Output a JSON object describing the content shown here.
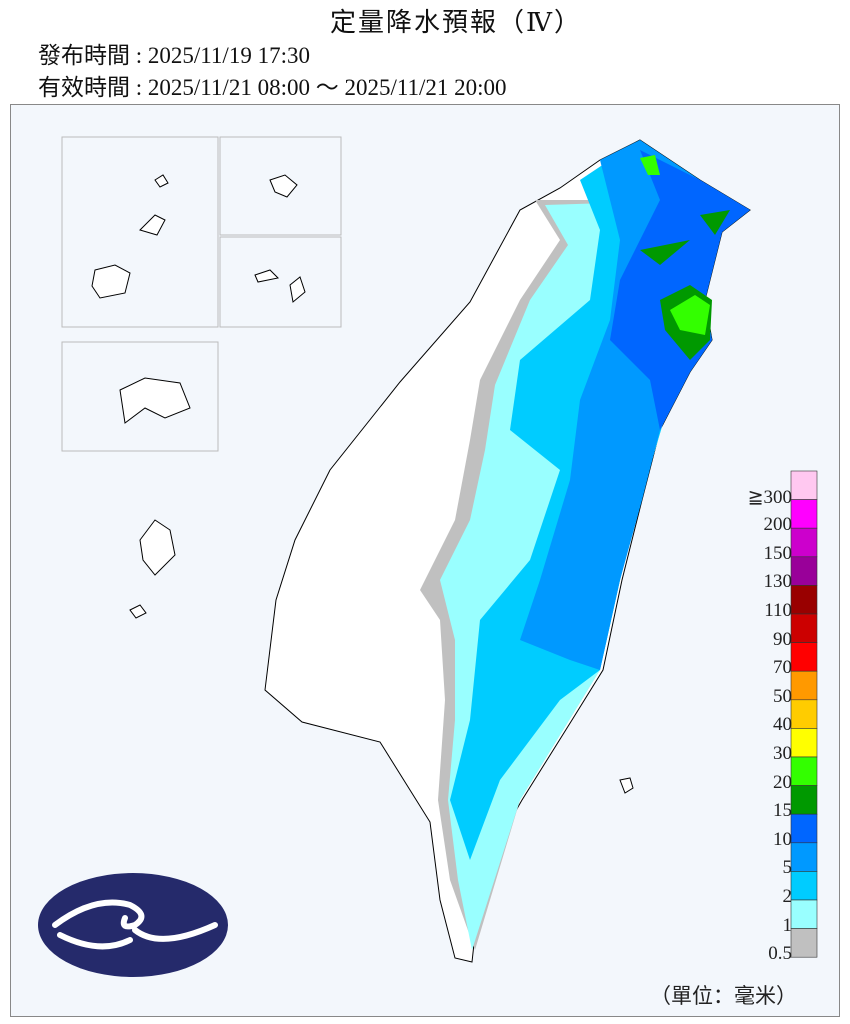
{
  "header": {
    "title": "定量降水預報（Ⅳ）",
    "issue_label": "發布時間 : ",
    "issue_time": "2025/11/19 17:30",
    "valid_label": "有效時間 : ",
    "valid_time": "2025/11/21 08:00 ～ 2025/11/21 20:00"
  },
  "legend": {
    "labels": [
      "≧300",
      "200",
      "150",
      "130",
      "110",
      "90",
      "70",
      "50",
      "40",
      "30",
      "20",
      "15",
      "10",
      "5",
      "2",
      "1",
      "0.5"
    ],
    "colors": [
      "#ffc8f0",
      "#ff00ff",
      "#cc00cc",
      "#990099",
      "#990000",
      "#cc0000",
      "#ff0000",
      "#ff9900",
      "#ffcc00",
      "#ffff00",
      "#33ff00",
      "#009900",
      "#0066ff",
      "#0099ff",
      "#00ccff",
      "#99ffff",
      "#c0c0c0"
    ],
    "unit": "（單位：毫米）"
  },
  "map": {
    "region": "Taiwan",
    "logo": "central-weather-administration-logo"
  }
}
